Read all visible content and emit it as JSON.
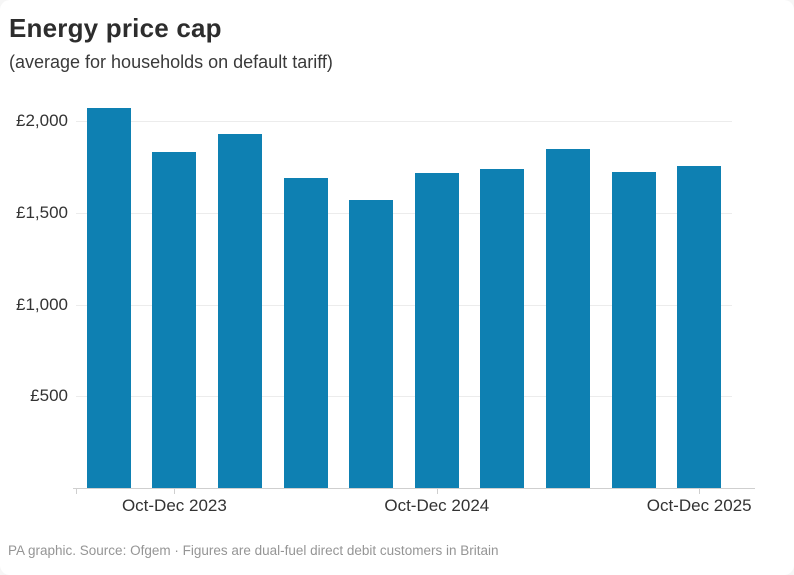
{
  "header": {
    "title": "Energy price cap",
    "subtitle": "(average for households on default tariff)"
  },
  "footer": {
    "text": "PA graphic. Source: Ofgem · Figures are dual-fuel direct debit customers in Britain"
  },
  "colors": {
    "bar": "#0e80b2",
    "gridline": "#ececec",
    "axis": "#cfcfcf",
    "title_text": "#2d2d2d",
    "label_text": "#333333",
    "footer_text": "#959595"
  },
  "chart_data": {
    "type": "bar",
    "title": "Energy price cap",
    "subtitle": "(average for households on default tariff)",
    "unit": "£",
    "values": [
      2074,
      1834,
      1928,
      1690,
      1568,
      1717,
      1738,
      1849,
      1720,
      1755
    ],
    "x_tick_labels": [
      {
        "bar_index": 1,
        "label": "Oct-Dec 2023"
      },
      {
        "bar_index": 5,
        "label": "Oct-Dec 2024"
      },
      {
        "bar_index": 9,
        "label": "Oct-Dec 2025"
      }
    ],
    "y_ticks": [
      {
        "value": 2000,
        "label": "£2,000"
      },
      {
        "value": 1500,
        "label": "£1,500"
      },
      {
        "value": 1000,
        "label": "£1,000"
      },
      {
        "value": 500,
        "label": "£500"
      }
    ],
    "ylim": [
      0,
      2115
    ],
    "grid": true,
    "legend": "none",
    "bar_color": "#0e80b2"
  }
}
